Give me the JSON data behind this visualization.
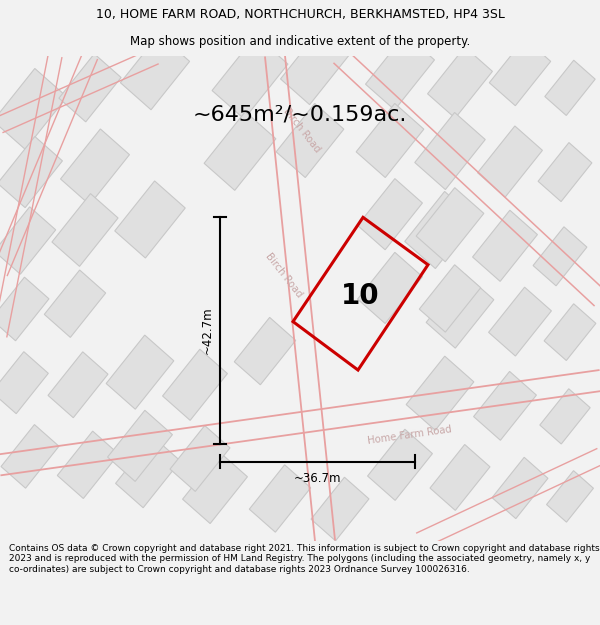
{
  "title_line1": "10, HOME FARM ROAD, NORTHCHURCH, BERKHAMSTED, HP4 3SL",
  "title_line2": "Map shows position and indicative extent of the property.",
  "area_label": "~645m²/~0.159ac.",
  "dim_vertical": "~42.7m",
  "dim_horizontal": "~36.7m",
  "property_number": "10",
  "road_label_birch": "Birch Road",
  "road_label_home": "Home Farm Road",
  "footer_text": "Contains OS data © Crown copyright and database right 2021. This information is subject to Crown copyright and database rights 2023 and is reproduced with the permission of HM Land Registry. The polygons (including the associated geometry, namely x, y co-ordinates) are subject to Crown copyright and database rights 2023 Ordnance Survey 100026316.",
  "bg_color": "#f2f2f2",
  "map_bg": "#ffffff",
  "plot_color_red": "#cc0000",
  "building_fill": "#e0e0e0",
  "building_edge": "#c8c8c8",
  "road_line_color": "#e8a0a0",
  "dim_line_color": "#000000",
  "text_color": "#000000",
  "road_text_color": "#c8a8a8",
  "title_fontsize": 9,
  "subtitle_fontsize": 8.5,
  "area_fontsize": 16,
  "dim_fontsize": 8.5,
  "number_fontsize": 20,
  "footer_fontsize": 6.5
}
